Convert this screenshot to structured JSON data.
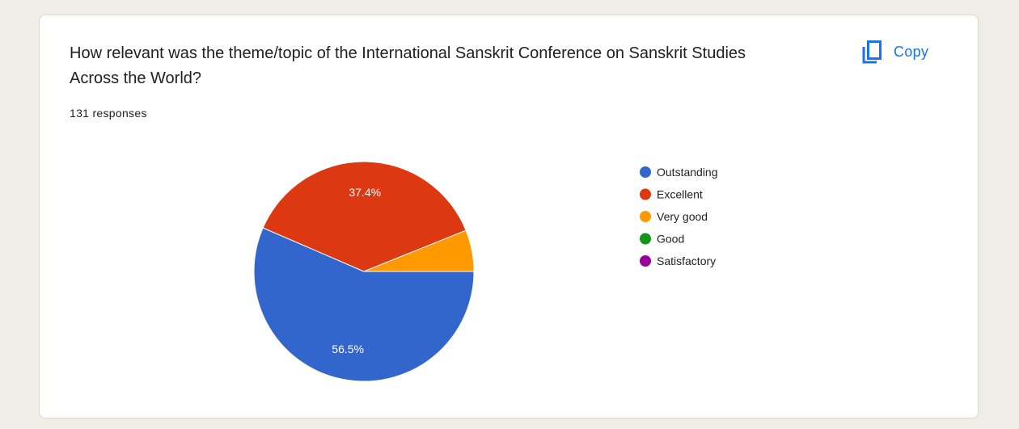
{
  "card": {
    "question": "How relevant was the theme/topic of the International Sanskrit Conference on Sanskrit Studies Across the World?",
    "responses": "131 responses",
    "copy_label": "Copy"
  },
  "colors": {
    "accent": "#1a73e8",
    "background": "#efede6"
  },
  "chart_data": {
    "type": "pie",
    "legend_position": "right",
    "categories": [
      "Outstanding",
      "Excellent",
      "Very good",
      "Good",
      "Satisfactory"
    ],
    "values": [
      56.5,
      37.4,
      6.1,
      0,
      0
    ],
    "labels": [
      "56.5%",
      "37.4%",
      "",
      "",
      ""
    ],
    "colors": [
      "#3366cc",
      "#dc3912",
      "#ff9900",
      "#109618",
      "#990099"
    ]
  }
}
